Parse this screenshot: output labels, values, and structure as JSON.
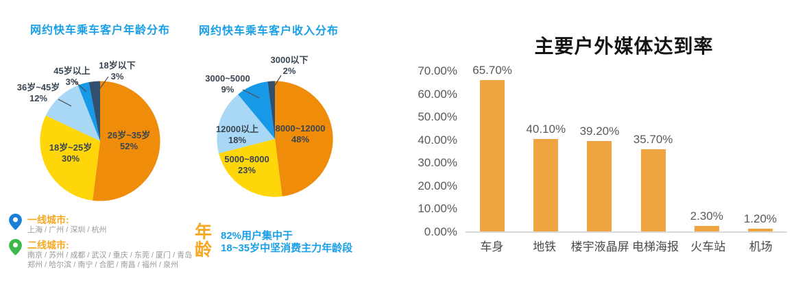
{
  "chart_data": [
    {
      "type": "pie",
      "title": "网约快车乘车客户年龄分布",
      "start_angle": "top",
      "direction": "clockwise",
      "slices": [
        {
          "name": "26岁~35岁",
          "pct": "52%",
          "value": 52,
          "color": "#EF8C0A"
        },
        {
          "name": "18岁~25岁",
          "pct": "30%",
          "value": 30,
          "color": "#FFD60A"
        },
        {
          "name": "36岁~45岁",
          "pct": "12%",
          "value": 12,
          "color": "#A8D8F5"
        },
        {
          "name": "45岁以上",
          "pct": "3%",
          "value": 3,
          "color": "#1799E8"
        },
        {
          "name": "18岁以下",
          "pct": "3%",
          "value": 3,
          "color": "#31506F"
        }
      ]
    },
    {
      "type": "pie",
      "title": "网约快车乘车客户收入分布",
      "start_angle": "top",
      "direction": "clockwise",
      "slices": [
        {
          "name": "8000~12000",
          "pct": "48%",
          "value": 48,
          "color": "#EF8C0A"
        },
        {
          "name": "5000~8000",
          "pct": "23%",
          "value": 23,
          "color": "#FFD60A"
        },
        {
          "name": "12000以上",
          "pct": "18%",
          "value": 18,
          "color": "#A8D8F5"
        },
        {
          "name": "3000~5000",
          "pct": "9%",
          "value": 9,
          "color": "#1799E8"
        },
        {
          "name": "3000以下",
          "pct": "2%",
          "value": 2,
          "color": "#31506F"
        }
      ]
    },
    {
      "type": "bar",
      "title": "主要户外媒体达到率",
      "categories": [
        "车身",
        "地铁",
        "楼宇液晶屏",
        "电梯海报",
        "火车站",
        "机场"
      ],
      "values": [
        65.7,
        40.1,
        39.2,
        35.7,
        2.3,
        1.2
      ],
      "value_labels": [
        "65.70%",
        "40.10%",
        "39.20%",
        "35.70%",
        "2.30%",
        "1.20%"
      ],
      "y_ticks": [
        "70.00%",
        "60.00%",
        "50.00%",
        "40.00%",
        "30.00%",
        "20.00%",
        "10.00%",
        "0.00%"
      ],
      "ylim": [
        0,
        70
      ],
      "grid": "off",
      "bar_color": "#F0A341"
    }
  ],
  "city_legend": {
    "tier1_label": "一线城市:",
    "tier1_cities": "上海 / 广州 / 深圳 / 杭州",
    "tier1_pin_color": "#1A7FD6",
    "tier2_label": "二线城市:",
    "tier2_cities_line1": "南京 / 苏州 / 成都 / 武汉 / 重庆 / 东莞 / 厦门 / 青岛",
    "tier2_cities_line2": "郑州 / 哈尔滨 / 南宁 / 合肥 / 南昌 / 福州 / 泉州",
    "tier2_pin_color": "#3CB94A"
  },
  "age_note": {
    "label": "年龄",
    "line1": "82%用户集中于",
    "line2": "18~35岁中坚消费主力年龄段"
  }
}
